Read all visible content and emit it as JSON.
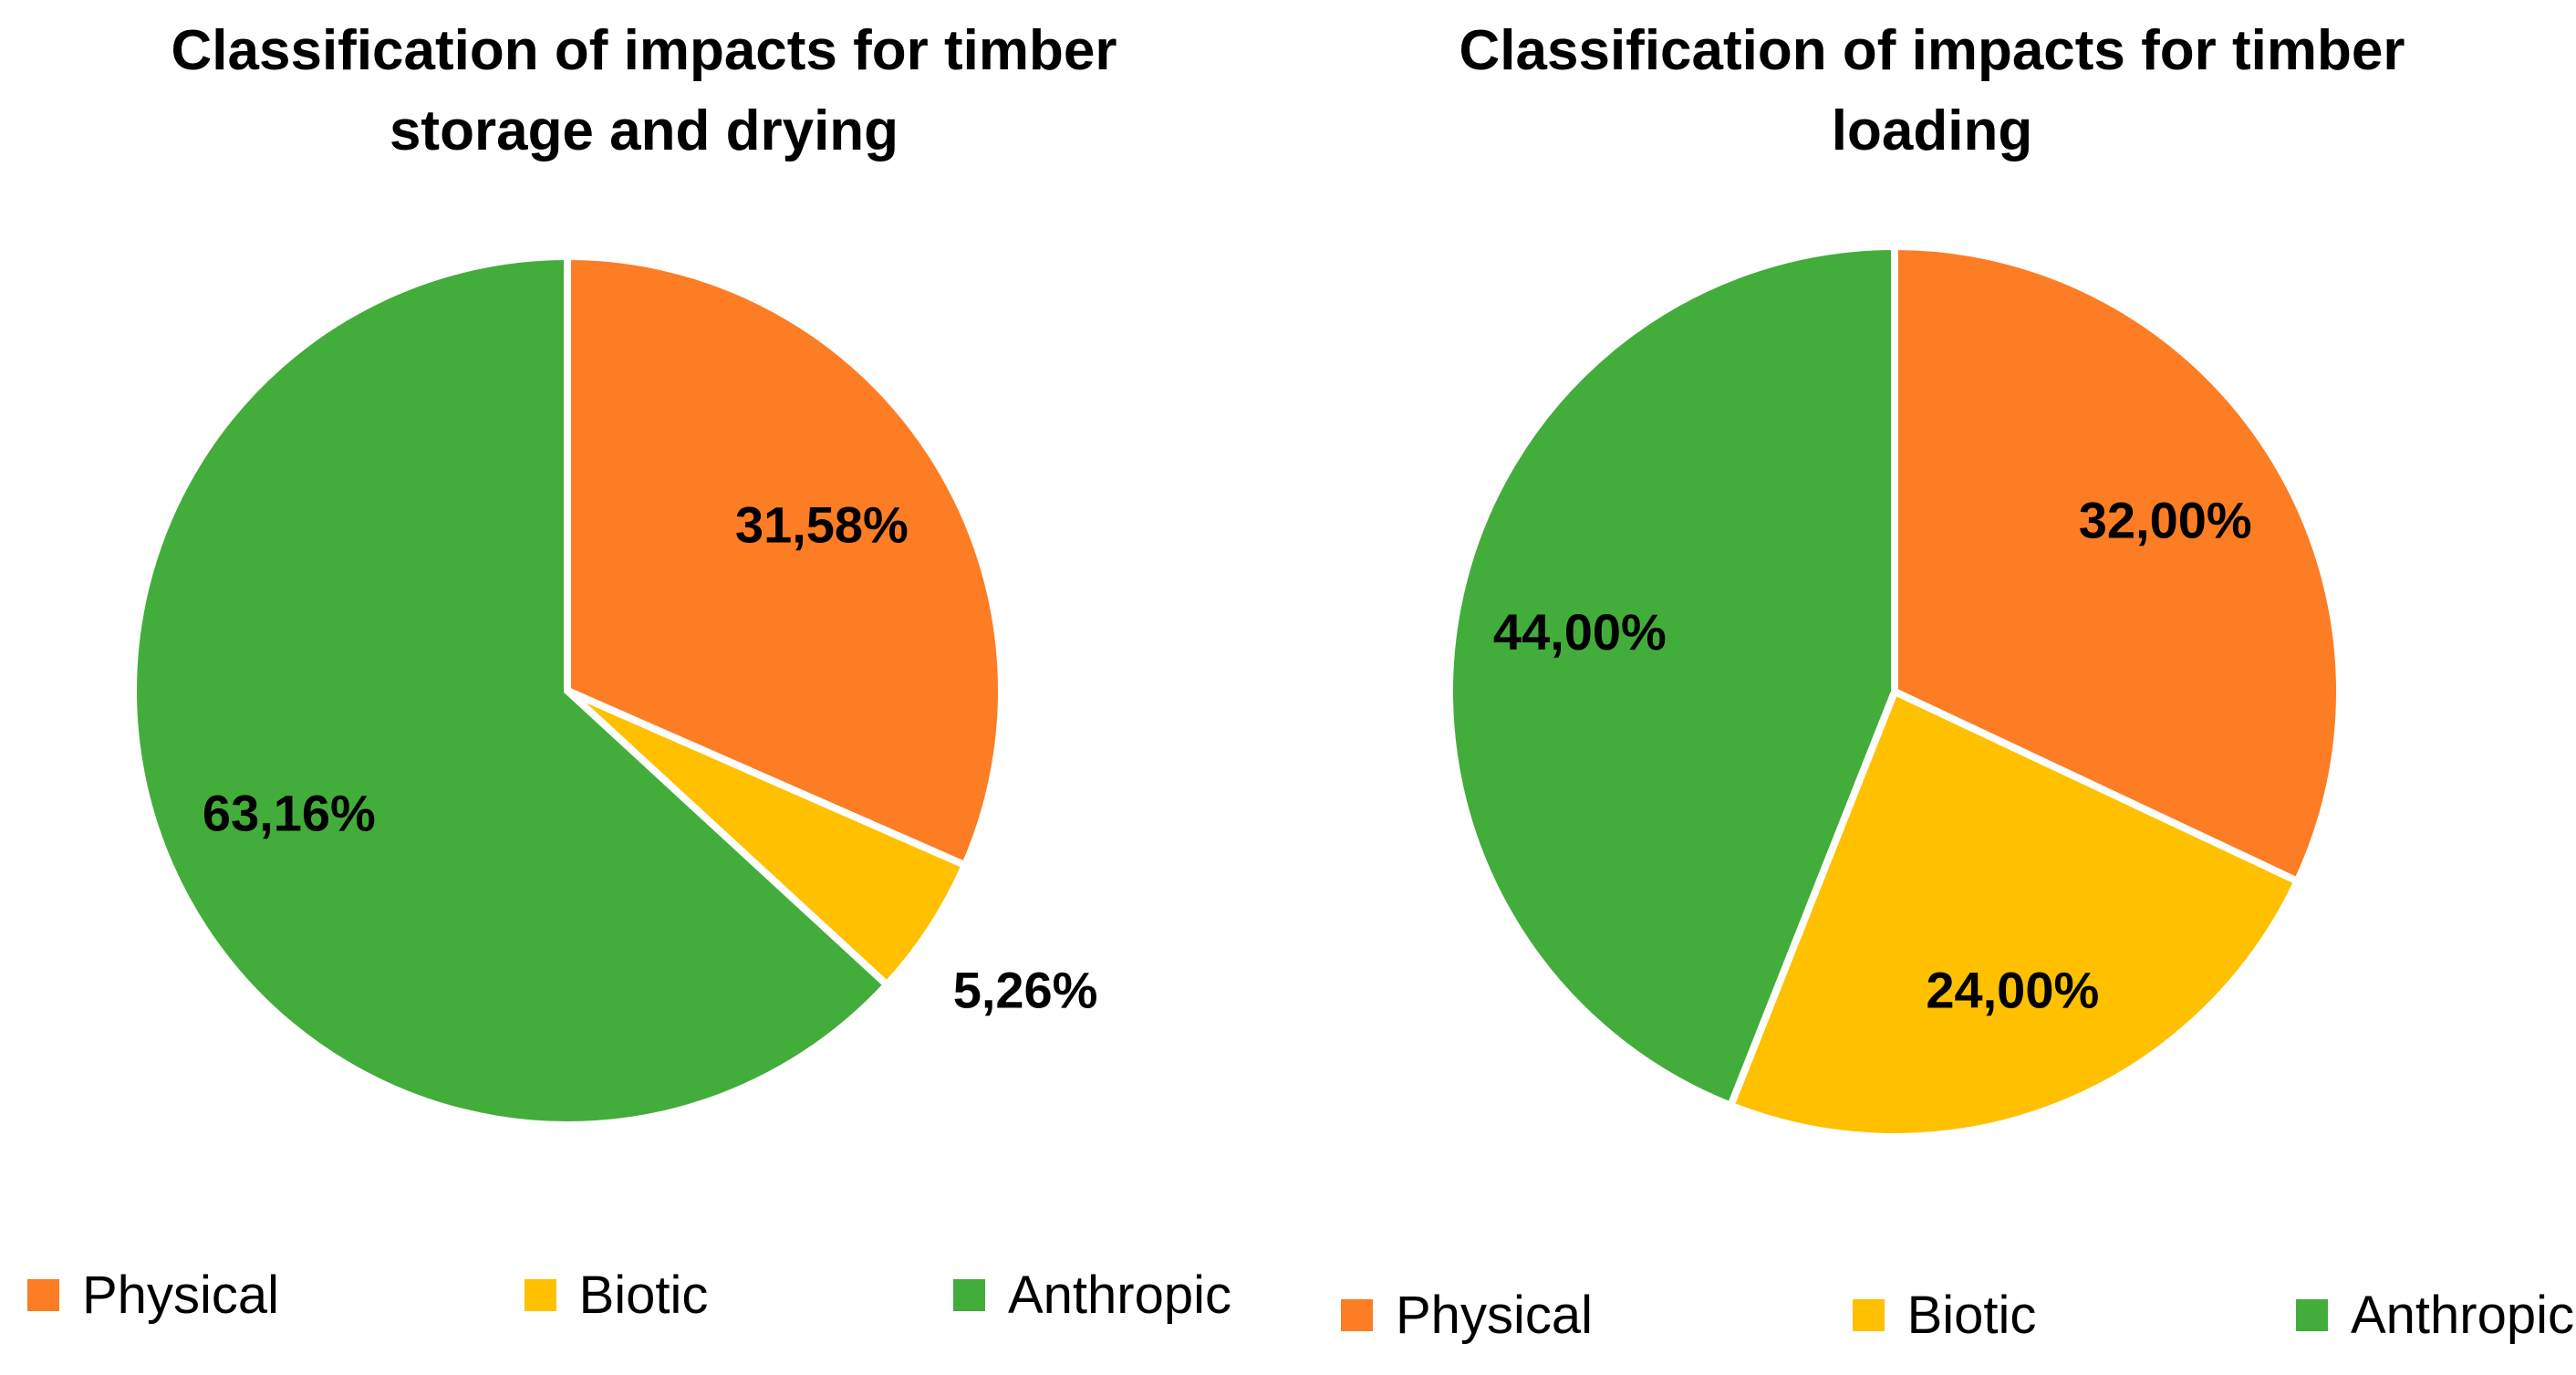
{
  "background_color": "#ffffff",
  "text_color": "#000000",
  "chart_data": [
    {
      "type": "pie",
      "title": "Classification of impacts for timber storage and drying",
      "categories": [
        "Physical",
        "Biotic",
        "Anthropic"
      ],
      "values": [
        31.58,
        5.26,
        63.16
      ],
      "value_labels": [
        "31,58%",
        "5,26%",
        "63,16%"
      ],
      "colors": [
        "#fc7d23",
        "#ffc000",
        "#43ad3b"
      ],
      "slice_border_color": "#ffffff",
      "start_angle_deg": 0,
      "direction": "clockwise",
      "label_placement": [
        "inside",
        "outside",
        "inside"
      ],
      "decimal_separator": ",",
      "legend": {
        "position": "bottom",
        "entries": [
          "Physical",
          "Biotic",
          "Anthropic"
        ]
      }
    },
    {
      "type": "pie",
      "title": "Classification of impacts for timber loading",
      "categories": [
        "Physical",
        "Biotic",
        "Anthropic"
      ],
      "values": [
        32.0,
        24.0,
        44.0
      ],
      "value_labels": [
        "32,00%",
        "24,00%",
        "44,00%"
      ],
      "colors": [
        "#fc7d23",
        "#ffc000",
        "#43ad3b"
      ],
      "slice_border_color": "#ffffff",
      "start_angle_deg": 0,
      "direction": "clockwise",
      "label_placement": [
        "inside",
        "inside",
        "inside"
      ],
      "decimal_separator": ",",
      "legend": {
        "position": "bottom",
        "entries": [
          "Physical",
          "Biotic",
          "Anthropic"
        ]
      }
    }
  ]
}
